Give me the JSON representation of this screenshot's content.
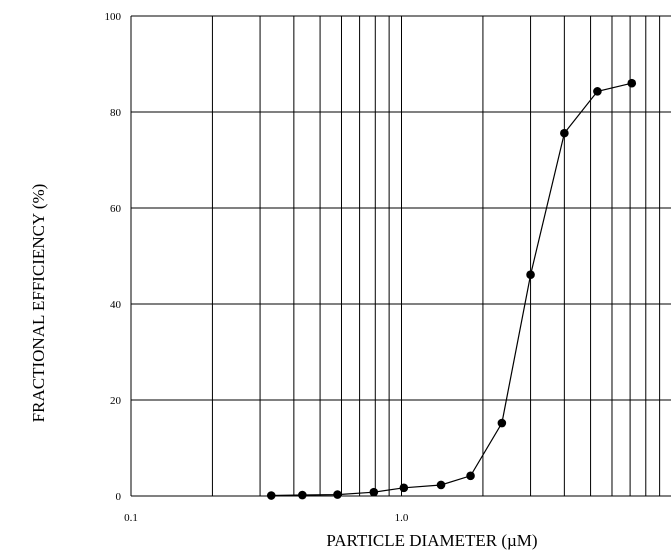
{
  "chart_data": {
    "type": "line",
    "title": "",
    "xlabel": "PARTICLE DIAMETER (µM)",
    "ylabel": "FRACTIONAL EFFICIENCY (%)",
    "x_scale": "log",
    "xlim": [
      0.1,
      10
    ],
    "ylim": [
      0,
      100
    ],
    "x_tick_labels": [
      "0.1",
      "1.0"
    ],
    "y_tick_labels": [
      "0",
      "20",
      "40",
      "60",
      "80",
      "100"
    ],
    "grid": true,
    "legend": "none",
    "series": [
      {
        "color": "#000000",
        "x": [
          0.33,
          0.43,
          0.58,
          0.79,
          1.02,
          1.4,
          1.8,
          2.35,
          3.0,
          4.0,
          5.3,
          7.1
        ],
        "y": [
          0.1,
          0.2,
          0.3,
          0.8,
          1.7,
          2.3,
          4.2,
          15.2,
          46.1,
          75.6,
          84.3,
          86.0
        ]
      }
    ]
  }
}
